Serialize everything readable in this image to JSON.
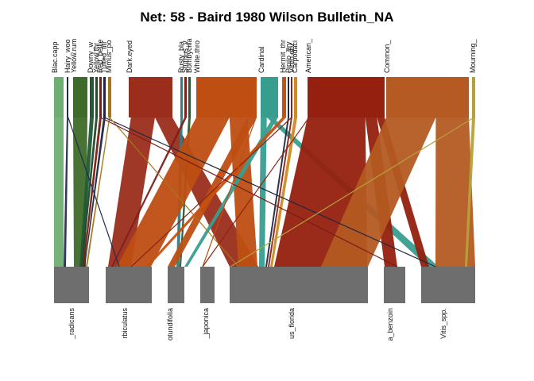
{
  "title": "Net: 58 - Baird 1980 Wilson Bulletin_NA",
  "top_nodes": [
    {
      "label": "Blac.capp",
      "color": "#6fae72"
    },
    {
      "label": "Hairy_woo",
      "color": "#1f2f4f"
    },
    {
      "label": "Yellow.rum",
      "color": "#3f6b2a"
    },
    {
      "label": "Downy_w",
      "color": "#1f5a34"
    },
    {
      "label": "Yellow.thr",
      "color": "#224a2b"
    },
    {
      "label": "Red_bellie",
      "color": "#7a1b16"
    },
    {
      "label": "Tufted_titr",
      "color": "#1b2740"
    },
    {
      "label": "Mimus_po",
      "color": "#a3761a"
    },
    {
      "label": "Dark.eyed",
      "color": "#9b2d1c"
    },
    {
      "label": "Rusty_bla",
      "color": "#2b7f86"
    },
    {
      "label": "Sturnus_v",
      "color": "#7f1f1a"
    },
    {
      "label": "Bombycilla",
      "color": "#2a5a2f"
    },
    {
      "label": "White.thro",
      "color": "#be4e12"
    },
    {
      "label": "Cardinal",
      "color": "#379e8f"
    },
    {
      "label": "Hermit_thr",
      "color": "#c9500f"
    },
    {
      "label": "Pipilo_ery",
      "color": "#1b2a47"
    },
    {
      "label": "Vireo.oliv",
      "color": "#8b2318"
    },
    {
      "label": "Carpodaci",
      "color": "#d08a20"
    },
    {
      "label": "American_",
      "color": "#95200f"
    },
    {
      "label": "Common_",
      "color": "#b45a22"
    },
    {
      "label": "Mourning_",
      "color": "#b5a13a"
    }
  ],
  "bottom_nodes": [
    {
      "label": "_radicans"
    },
    {
      "label": "rbiculatus"
    },
    {
      "label": "otundifolia"
    },
    {
      "label": "_japonica"
    },
    {
      "label": "us_florida"
    },
    {
      "label": "a_benzoin"
    },
    {
      "label": "Vitis_spp."
    }
  ],
  "colors": {
    "bottom_node": "#6e6e6e",
    "background": "#ffffff"
  }
}
